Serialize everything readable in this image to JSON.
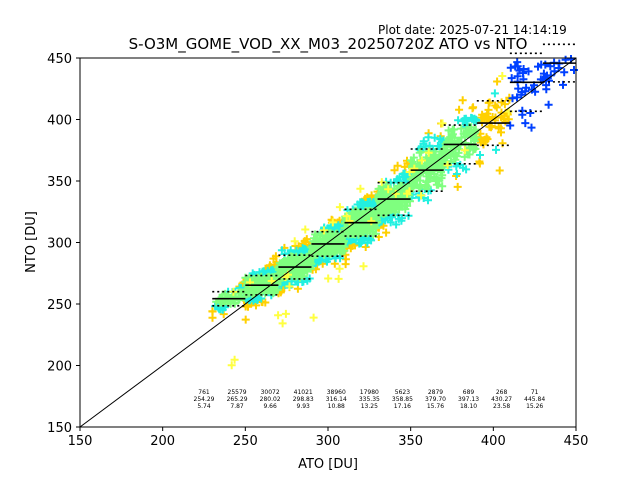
{
  "plot_date": "Plot date: 2025-07-21 14:14:19",
  "chart_data": {
    "type": "scatter",
    "title": "S-O3M_GOME_VOD_XX_M03_20250720Z ATO vs NTO",
    "xlabel": "ATO [DU]",
    "ylabel": "NTO [DU]",
    "xlim": [
      150,
      450
    ],
    "ylim": [
      150,
      450
    ],
    "xticks": [
      "150",
      "200",
      "250",
      "300",
      "350",
      "400",
      "450"
    ],
    "yticks": [
      "150",
      "200",
      "250",
      "300",
      "350",
      "400",
      "450"
    ],
    "grid": false,
    "legend": "none",
    "colors": {
      "density_levels": [
        "#7fff7f",
        "#22f0e0",
        "#ffd000",
        "#0040ff",
        "#ffff40"
      ],
      "reference_line": "#000000",
      "bin_stats": "#000000"
    },
    "reference_line": {
      "x": [
        150,
        450
      ],
      "y": [
        150,
        450
      ]
    },
    "bin_centers": [
      240,
      260,
      280,
      300,
      320,
      340,
      360,
      380,
      400,
      420,
      440
    ],
    "bins": [
      {
        "count": "761",
        "mean": "254.29",
        "std": "5.74",
        "mean_value": 254.29,
        "std_value": 5.74
      },
      {
        "count": "25579",
        "mean": "265.29",
        "std": "7.87",
        "mean_value": 265.29,
        "std_value": 7.87
      },
      {
        "count": "30072",
        "mean": "280.02",
        "std": "9.66",
        "mean_value": 280.02,
        "std_value": 9.66
      },
      {
        "count": "41021",
        "mean": "298.83",
        "std": "9.93",
        "mean_value": 298.83,
        "std_value": 9.93
      },
      {
        "count": "38960",
        "mean": "316.14",
        "std": "10.88",
        "mean_value": 316.14,
        "std_value": 10.88
      },
      {
        "count": "17980",
        "mean": "335.35",
        "std": "13.25",
        "mean_value": 335.35,
        "std_value": 13.25
      },
      {
        "count": "5623",
        "mean": "358.85",
        "std": "17.16",
        "mean_value": 358.85,
        "std_value": 17.16
      },
      {
        "count": "2879",
        "mean": "379.70",
        "std": "15.76",
        "mean_value": 379.7,
        "std_value": 15.76
      },
      {
        "count": "689",
        "mean": "397.13",
        "std": "18.10",
        "mean_value": 397.13,
        "std_value": 18.1
      },
      {
        "count": "268",
        "mean": "430.27",
        "std": "23.58",
        "mean_value": 430.27,
        "std_value": 23.58
      },
      {
        "count": "71",
        "mean": "445.84",
        "std": "15.26",
        "mean_value": 445.84,
        "std_value": 15.26
      }
    ]
  }
}
